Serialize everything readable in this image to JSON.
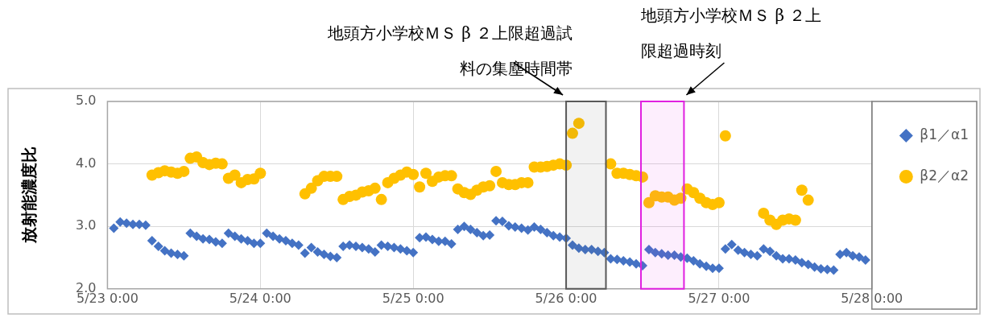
{
  "chart_data": {
    "type": "scatter",
    "ylabel": "放射能濃度比",
    "legend": "top right",
    "grid": true,
    "xlim": [
      "--05-23T00:00",
      "--05-28T00:00"
    ],
    "xticks": [
      {
        "value": "--05-23T00:00",
        "label": "5/23 0:00"
      },
      {
        "value": "--05-24T00:00",
        "label": "5/24 0:00"
      },
      {
        "value": "--05-25T00:00",
        "label": "5/25 0:00"
      },
      {
        "value": "--05-26T00:00",
        "label": "5/26 0:00"
      },
      {
        "value": "--05-27T00:00",
        "label": "5/27 0:00"
      },
      {
        "value": "--05-28T00:00",
        "label": "5/28 0:00"
      }
    ],
    "ylim": [
      2,
      5
    ],
    "yticks": [
      {
        "value": 2,
        "label": "2.0"
      },
      {
        "value": 3,
        "label": "3.0"
      },
      {
        "value": 4,
        "label": "4.0"
      },
      {
        "value": 5,
        "label": "5.0"
      }
    ],
    "bands": [
      {
        "axis": "x",
        "from": "--05-26T00:00",
        "to": "--05-26T06:15",
        "label": "地頭方小学校ＭＳ β ２上限超過試料の集塵時間帯",
        "color": "#595959"
      },
      {
        "axis": "x",
        "from": "--05-26T11:45",
        "to": "--05-26T18:30",
        "label": "地頭方小学校ＭＳ β ２上限超過時刻",
        "color": "#e020e0"
      }
    ],
    "series": [
      {
        "name": "β1／α1",
        "marker": "diamond",
        "color": "#4472c4",
        "x": [
          "--05-23T01:00",
          "--05-23T02:00",
          "--05-23T03:00",
          "--05-23T04:00",
          "--05-23T05:00",
          "--05-23T06:00",
          "--05-23T07:00",
          "--05-23T08:00",
          "--05-23T09:00",
          "--05-23T10:00",
          "--05-23T11:00",
          "--05-23T12:00",
          "--05-23T13:00",
          "--05-23T14:00",
          "--05-23T15:00",
          "--05-23T16:00",
          "--05-23T17:00",
          "--05-23T18:00",
          "--05-23T19:00",
          "--05-23T20:00",
          "--05-23T21:00",
          "--05-23T22:00",
          "--05-23T23:00",
          "--05-24T00:00",
          "--05-24T01:00",
          "--05-24T02:00",
          "--05-24T03:00",
          "--05-24T04:00",
          "--05-24T05:00",
          "--05-24T06:00",
          "--05-24T07:00",
          "--05-24T08:00",
          "--05-24T09:00",
          "--05-24T10:00",
          "--05-24T11:00",
          "--05-24T12:00",
          "--05-24T13:00",
          "--05-24T14:00",
          "--05-24T15:00",
          "--05-24T16:00",
          "--05-24T17:00",
          "--05-24T18:00",
          "--05-24T19:00",
          "--05-24T20:00",
          "--05-24T21:00",
          "--05-24T22:00",
          "--05-24T23:00",
          "--05-25T00:00",
          "--05-25T01:00",
          "--05-25T02:00",
          "--05-25T03:00",
          "--05-25T04:00",
          "--05-25T05:00",
          "--05-25T06:00",
          "--05-25T07:00",
          "--05-25T08:00",
          "--05-25T09:00",
          "--05-25T10:00",
          "--05-25T11:00",
          "--05-25T12:00",
          "--05-25T13:00",
          "--05-25T14:00",
          "--05-25T15:00",
          "--05-25T16:00",
          "--05-25T17:00",
          "--05-25T18:00",
          "--05-25T19:00",
          "--05-25T20:00",
          "--05-25T21:00",
          "--05-25T22:00",
          "--05-25T23:00",
          "--05-26T00:00",
          "--05-26T01:00",
          "--05-26T02:00",
          "--05-26T03:00",
          "--05-26T04:00",
          "--05-26T05:00",
          "--05-26T06:00",
          "--05-26T07:00",
          "--05-26T08:00",
          "--05-26T09:00",
          "--05-26T10:00",
          "--05-26T11:00",
          "--05-26T12:00",
          "--05-26T13:00",
          "--05-26T14:00",
          "--05-26T15:00",
          "--05-26T16:00",
          "--05-26T17:00",
          "--05-26T18:00",
          "--05-26T19:00",
          "--05-26T20:00",
          "--05-26T21:00",
          "--05-26T22:00",
          "--05-26T23:00",
          "--05-27T00:00",
          "--05-27T01:00",
          "--05-27T02:00",
          "--05-27T03:00",
          "--05-27T04:00",
          "--05-27T05:00",
          "--05-27T06:00",
          "--05-27T07:00",
          "--05-27T08:00",
          "--05-27T09:00",
          "--05-27T10:00",
          "--05-27T11:00",
          "--05-27T12:00",
          "--05-27T13:00",
          "--05-27T14:00",
          "--05-27T15:00",
          "--05-27T16:00",
          "--05-27T17:00",
          "--05-27T18:00",
          "--05-27T19:00",
          "--05-27T20:00",
          "--05-27T21:00",
          "--05-27T22:00",
          "--05-27T23:00"
        ],
        "values": [
          2.97,
          3.07,
          3.05,
          3.03,
          3.03,
          3.02,
          2.77,
          2.68,
          2.61,
          2.57,
          2.55,
          2.53,
          2.89,
          2.84,
          2.8,
          2.79,
          2.75,
          2.73,
          2.89,
          2.84,
          2.8,
          2.77,
          2.73,
          2.73,
          2.89,
          2.84,
          2.8,
          2.77,
          2.73,
          2.7,
          2.57,
          2.66,
          2.59,
          2.55,
          2.52,
          2.5,
          2.68,
          2.7,
          2.68,
          2.66,
          2.64,
          2.59,
          2.7,
          2.68,
          2.66,
          2.64,
          2.61,
          2.58,
          2.82,
          2.83,
          2.79,
          2.76,
          2.76,
          2.72,
          2.95,
          3.0,
          2.95,
          2.9,
          2.85,
          2.86,
          3.09,
          3.08,
          3.01,
          2.99,
          2.97,
          2.94,
          2.99,
          2.95,
          2.9,
          2.85,
          2.83,
          2.81,
          2.7,
          2.65,
          2.63,
          2.63,
          2.6,
          2.58,
          2.48,
          2.47,
          2.45,
          2.43,
          2.4,
          2.37,
          2.63,
          2.58,
          2.56,
          2.54,
          2.54,
          2.51,
          2.49,
          2.45,
          2.4,
          2.36,
          2.33,
          2.33,
          2.64,
          2.71,
          2.62,
          2.58,
          2.55,
          2.53,
          2.64,
          2.6,
          2.53,
          2.48,
          2.48,
          2.46,
          2.42,
          2.39,
          2.35,
          2.32,
          2.31,
          2.3,
          2.55,
          2.58,
          2.53,
          2.51,
          2.46
        ]
      },
      {
        "name": "β2／α2",
        "marker": "circle",
        "color": "#ffc000",
        "x": [
          "--05-23T07:00",
          "--05-23T08:00",
          "--05-23T09:00",
          "--05-23T10:00",
          "--05-23T11:00",
          "--05-23T12:00",
          "--05-23T13:00",
          "--05-23T14:00",
          "--05-23T15:00",
          "--05-23T16:00",
          "--05-23T17:00",
          "--05-23T18:00",
          "--05-23T19:00",
          "--05-23T20:00",
          "--05-23T21:00",
          "--05-23T22:00",
          "--05-23T23:00",
          "--05-24T00:00",
          "--05-24T07:00",
          "--05-24T08:00",
          "--05-24T09:00",
          "--05-24T10:00",
          "--05-24T11:00",
          "--05-24T12:00",
          "--05-24T13:00",
          "--05-24T14:00",
          "--05-24T15:00",
          "--05-24T16:00",
          "--05-24T17:00",
          "--05-24T18:00",
          "--05-24T19:00",
          "--05-24T20:00",
          "--05-24T21:00",
          "--05-24T22:00",
          "--05-24T23:00",
          "--05-25T00:00",
          "--05-25T01:00",
          "--05-25T02:00",
          "--05-25T03:00",
          "--05-25T04:00",
          "--05-25T05:00",
          "--05-25T06:00",
          "--05-25T07:00",
          "--05-25T08:00",
          "--05-25T09:00",
          "--05-25T10:00",
          "--05-25T11:00",
          "--05-25T12:00",
          "--05-25T13:00",
          "--05-25T14:00",
          "--05-25T15:00",
          "--05-25T16:00",
          "--05-25T17:00",
          "--05-25T18:00",
          "--05-25T19:00",
          "--05-25T20:00",
          "--05-25T21:00",
          "--05-25T22:00",
          "--05-25T23:00",
          "--05-26T00:00",
          "--05-26T01:00",
          "--05-26T02:00",
          "--05-26T07:00",
          "--05-26T08:00",
          "--05-26T09:00",
          "--05-26T10:00",
          "--05-26T11:00",
          "--05-26T12:00",
          "--05-26T13:00",
          "--05-26T14:00",
          "--05-26T15:00",
          "--05-26T16:00",
          "--05-26T17:00",
          "--05-26T18:00",
          "--05-26T19:00",
          "--05-26T20:00",
          "--05-26T21:00",
          "--05-26T22:00",
          "--05-26T23:00",
          "--05-27T00:00",
          "--05-27T01:00",
          "--05-27T07:00",
          "--05-27T08:00",
          "--05-27T09:00",
          "--05-27T10:00",
          "--05-27T11:00",
          "--05-27T12:00",
          "--05-27T13:00",
          "--05-27T14:00"
        ],
        "values": [
          3.82,
          3.86,
          3.89,
          3.87,
          3.85,
          3.88,
          4.09,
          4.11,
          4.02,
          3.99,
          4.01,
          4.0,
          3.77,
          3.82,
          3.7,
          3.75,
          3.76,
          3.85,
          3.52,
          3.61,
          3.73,
          3.8,
          3.8,
          3.8,
          3.43,
          3.48,
          3.5,
          3.55,
          3.57,
          3.61,
          3.43,
          3.7,
          3.77,
          3.82,
          3.87,
          3.83,
          3.63,
          3.85,
          3.72,
          3.79,
          3.81,
          3.81,
          3.6,
          3.54,
          3.51,
          3.58,
          3.63,
          3.65,
          3.88,
          3.7,
          3.67,
          3.67,
          3.7,
          3.7,
          3.95,
          3.95,
          3.96,
          3.98,
          4.0,
          3.98,
          4.49,
          4.65,
          4.0,
          3.85,
          3.85,
          3.83,
          3.81,
          3.79,
          3.38,
          3.49,
          3.47,
          3.47,
          3.42,
          3.45,
          3.6,
          3.54,
          3.45,
          3.38,
          3.35,
          3.38,
          4.45,
          3.21,
          3.1,
          3.03,
          3.1,
          3.12,
          3.1,
          3.58,
          3.42
        ]
      }
    ]
  }
}
